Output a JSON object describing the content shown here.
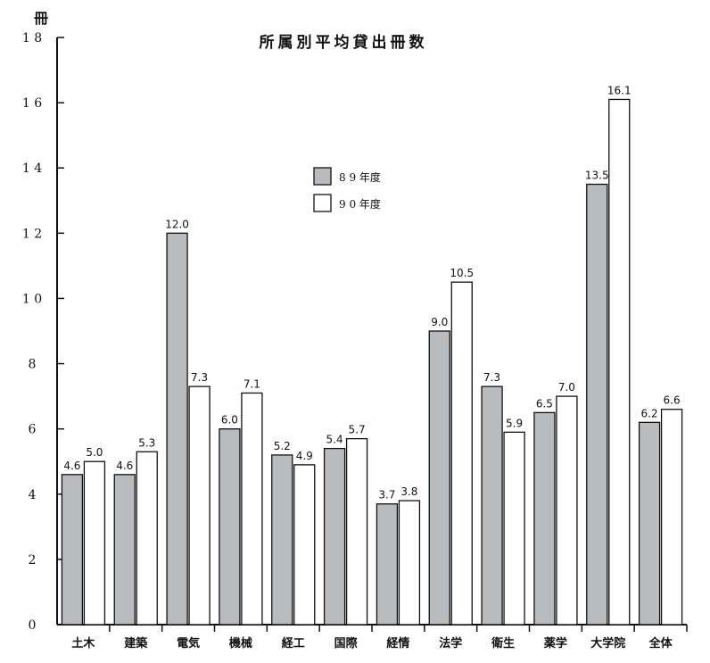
{
  "chart_data": {
    "type": "bar",
    "title": "所属別平均貸出冊数",
    "unit_label": "冊",
    "categories": [
      "土木",
      "建築",
      "電気",
      "機械",
      "経工",
      "国際",
      "経情",
      "法学",
      "衛生",
      "薬学",
      "大学院",
      "全体"
    ],
    "series": [
      {
        "name": "89年度",
        "values": [
          4.6,
          4.6,
          12.0,
          6.0,
          5.2,
          5.4,
          3.7,
          9.0,
          7.3,
          6.5,
          13.5,
          6.2
        ],
        "color": "#b9bcbf"
      },
      {
        "name": "90年度",
        "values": [
          5.0,
          5.3,
          7.3,
          7.1,
          4.9,
          5.7,
          3.8,
          10.5,
          5.9,
          7.0,
          16.1,
          6.6
        ],
        "color": "#ffffff"
      }
    ],
    "data_labels": [
      [
        "4.6",
        "4.6",
        "12.0",
        "6.0",
        "5.2",
        "5.4",
        "3.7",
        "9.0",
        "7.3",
        "6.5",
        "13.5",
        "6.2"
      ],
      [
        "5.0",
        "5.3",
        "7.3",
        "7.1",
        "4.9",
        "5.7",
        "3.8",
        "10.5",
        "5.9",
        "7.0",
        "16.1",
        "6.6"
      ]
    ],
    "ylim": [
      0,
      18
    ],
    "yticks": [
      0,
      2,
      4,
      6,
      8,
      10,
      12,
      14,
      16,
      18
    ],
    "ytick_labels": [
      "0",
      "2",
      "4",
      "6",
      "8",
      "1 0",
      "1 2",
      "1 4",
      "1 6",
      "1 8"
    ],
    "xlabel": "",
    "ylabel": "",
    "grid": false,
    "legend_position": "upper-center",
    "legend_labels": [
      "8 9 年度",
      "9 0 年度"
    ]
  }
}
